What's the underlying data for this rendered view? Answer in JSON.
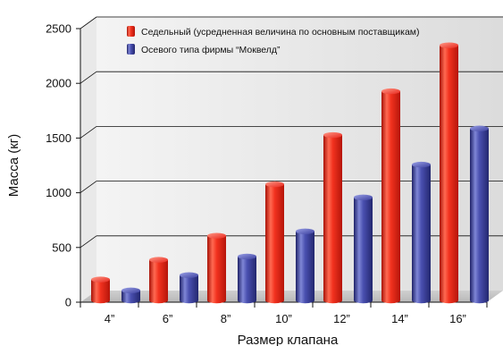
{
  "chart_data": {
    "type": "bar",
    "categories": [
      "4”",
      "6”",
      "8”",
      "10”",
      "12”",
      "14”",
      "16”"
    ],
    "series": [
      {
        "name": "Седельный (усредненная величина по основным поставщикам)",
        "color": "#e8261c",
        "values": [
          240,
          420,
          640,
          1110,
          1560,
          1960,
          2380
        ]
      },
      {
        "name": "Осевого типа фирмы “Моквелд”",
        "color": "#3b3f9e",
        "values": [
          140,
          280,
          450,
          680,
          990,
          1290,
          1620
        ]
      }
    ],
    "xlabel": "Размер клапана",
    "ylabel": "Масса (кг)",
    "ylim": [
      0,
      2500
    ],
    "yticks": [
      "0",
      "500",
      "1000",
      "1500",
      "2000",
      "2500"
    ],
    "grid": true,
    "legend_position": "top-left",
    "plot_background": "#e6e6e6"
  }
}
